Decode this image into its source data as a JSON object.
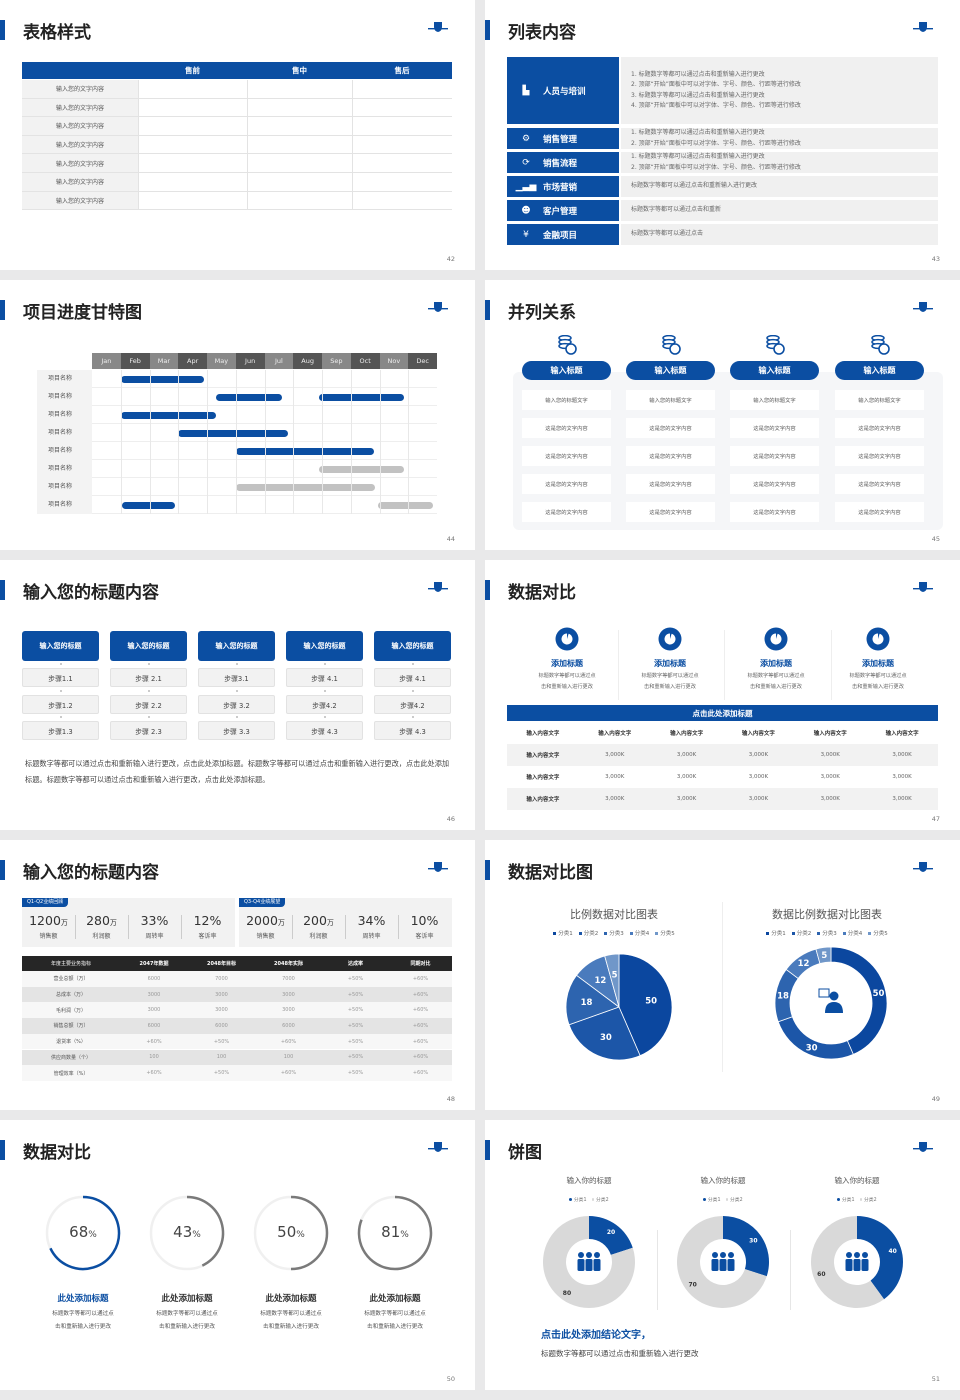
{
  "colors": {
    "primary": "#0b4ea2",
    "inactive_bar": "#c2c2c2",
    "table_header_dark": "#262626",
    "ring_gray": "#7a7a7a"
  },
  "logo": "university-crest-logo",
  "slides": [
    {
      "page": "42",
      "title": "表格样式",
      "table": {
        "headers": [
          "",
          "售前",
          "售中",
          "售后"
        ],
        "rows": [
          "输入您的文字内容",
          "输入您的文字内容",
          "输入您的文字内容",
          "输入您的文字内容",
          "输入您的文字内容",
          "输入您的文字内容",
          "输入您的文字内容"
        ]
      }
    },
    {
      "page": "43",
      "title": "列表内容",
      "items": [
        {
          "label": "人员与培训",
          "icon": "presentation-icon",
          "lines": [
            "1.  标题数字等都可以通过点击和重新输入进行更改",
            "2.  顶部“开始”面板中可以对字体、字号、颜色、行距等进行修改",
            "3.  标题数字等都可以通过点击和重新输入进行更改",
            "4.  顶部“开始”面板中可以对字体、字号、颜色、行距等进行修改"
          ]
        },
        {
          "label": "销售管理",
          "icon": "user-gear-icon",
          "lines": [
            "1.  标题数字等都可以通过点击和重新输入进行更改",
            "2.  顶部“开始”面板中可以对字体、字号、颜色、行距等进行修改"
          ]
        },
        {
          "label": "销售流程",
          "icon": "cycle-icon",
          "lines": [
            "1.  标题数字等都可以通过点击和重新输入进行更改",
            "2.  顶部“开始”面板中可以对字体、字号、颜色、行距等进行修改"
          ]
        },
        {
          "label": "市场营销",
          "icon": "bar-chart-icon",
          "lines": [
            "标题数字等都可以通过点击和重新输入进行更改"
          ]
        },
        {
          "label": "客户管理",
          "icon": "group-icon",
          "lines": [
            "标题数字等都可以通过点击和重新"
          ]
        },
        {
          "label": "金融项目",
          "icon": "money-hand-icon",
          "lines": [
            "标题数字等都可以通过点击"
          ]
        }
      ]
    },
    {
      "page": "44",
      "title": "项目进度甘特图",
      "months": [
        "Jan",
        "Feb",
        "Mar",
        "Apr",
        "May",
        "Jun",
        "Jul",
        "Aug",
        "Sep",
        "Oct",
        "Nov",
        "Dec"
      ],
      "tasks": [
        {
          "label": "项目名称",
          "bars": [
            {
              "start_month": 1.0,
              "end_month": 3.9,
              "status": "active"
            }
          ]
        },
        {
          "label": "项目名称",
          "bars": [
            {
              "start_month": 4.3,
              "end_month": 6.6,
              "status": "active"
            },
            {
              "start_month": 7.9,
              "end_month": 10.85,
              "status": "active"
            }
          ]
        },
        {
          "label": "项目名称",
          "bars": [
            {
              "start_month": 1.0,
              "end_month": 4.3,
              "status": "active"
            }
          ]
        },
        {
          "label": "项目名称",
          "bars": [
            {
              "start_month": 3.0,
              "end_month": 6.8,
              "status": "active"
            }
          ]
        },
        {
          "label": "项目名称",
          "bars": [
            {
              "start_month": 5.0,
              "end_month": 9.8,
              "status": "active"
            }
          ]
        },
        {
          "label": "项目名称",
          "bars": [
            {
              "start_month": 7.9,
              "end_month": 10.85,
              "status": "inactive"
            }
          ]
        },
        {
          "label": "项目名称",
          "bars": [
            {
              "start_month": 5.0,
              "end_month": 9.85,
              "status": "inactive"
            }
          ]
        },
        {
          "label": "项目名称",
          "bars": [
            {
              "start_month": 1.05,
              "end_month": 2.9,
              "status": "active"
            },
            {
              "start_month": 9.95,
              "end_month": 11.85,
              "status": "inactive"
            }
          ]
        }
      ]
    },
    {
      "page": "45",
      "title": "并列关系",
      "columns": [
        {
          "icon": "coins-icon",
          "heading": "输入标题",
          "cells": [
            "输入您的标题文字",
            "这是您的文字内容",
            "这是您的文字内容",
            "这是您的文字内容",
            "这是您的文字内容"
          ]
        },
        {
          "icon": "coins-icon",
          "heading": "输入标题",
          "cells": [
            "输入您的标题文字",
            "这是您的文字内容",
            "这是您的文字内容",
            "这是您的文字内容",
            "这是您的文字内容"
          ]
        },
        {
          "icon": "coins-icon",
          "heading": "输入标题",
          "cells": [
            "输入您的标题文字",
            "这是您的文字内容",
            "这是您的文字内容",
            "这是您的文字内容",
            "这是您的文字内容"
          ]
        },
        {
          "icon": "coins-icon",
          "heading": "输入标题",
          "cells": [
            "输入您的标题文字",
            "这是您的文字内容",
            "这是您的文字内容",
            "这是您的文字内容",
            "这是您的文字内容"
          ]
        }
      ]
    },
    {
      "page": "46",
      "title": "输入您的标题内容",
      "columns": [
        {
          "heading": "输入您的标题",
          "steps": [
            "步骤1.1",
            "步骤1.2",
            "步骤1.3"
          ]
        },
        {
          "heading": "输入您的标题",
          "steps": [
            "步骤 2.1",
            "步骤 2.2",
            "步骤 2.3"
          ]
        },
        {
          "heading": "输入您的标题",
          "steps": [
            "步骤3.1",
            "步骤 3.2",
            "步骤 3.3"
          ]
        },
        {
          "heading": "输入您的标题",
          "steps": [
            "步骤 4.1",
            "步骤4.2",
            "步骤 4.3"
          ]
        },
        {
          "heading": "输入您的标题",
          "steps": [
            "步骤 4.1",
            "步骤4.2",
            "步骤 4.3"
          ]
        }
      ],
      "paragraph": "标题数字等都可以通过点击和重新输入进行更改，点击此处添加标题。标题数字等都可以通过点击和重新输入进行更改，点击此处添加标题。标题数字等都可以通过点击和重新输入进行更改，点击此处添加标题。"
    },
    {
      "page": "47",
      "title": "数据对比",
      "features": [
        {
          "icon": "pie-chart-icon",
          "title": "添加标题",
          "desc": [
            "标题数字等都可以通过点",
            "击和重新输入进行更改"
          ]
        },
        {
          "icon": "pie-chart-icon",
          "title": "添加标题",
          "desc": [
            "标题数字等都可以通过点",
            "击和重新输入进行更改"
          ]
        },
        {
          "icon": "pie-chart-icon",
          "title": "添加标题",
          "desc": [
            "标题数字等都可以通过点",
            "击和重新输入进行更改"
          ]
        },
        {
          "icon": "pie-chart-icon",
          "title": "添加标题",
          "desc": [
            "标题数字等都可以通过点",
            "击和重新输入进行更改"
          ]
        }
      ],
      "table": {
        "title": "点击此处添加标题",
        "headers": [
          "输入内容文字",
          "输入内容文字",
          "输入内容文字",
          "输入内容文字",
          "输入内容文字",
          "输入内容文字"
        ],
        "rows": [
          [
            "输入内容文字",
            "3,000K",
            "3,000K",
            "3,000K",
            "3,000K",
            "3,000K"
          ],
          [
            "输入内容文字",
            "3,000K",
            "3,000K",
            "3,000K",
            "3,000K",
            "3,000K"
          ],
          [
            "输入内容文字",
            "3,000K",
            "3,000K",
            "3,000K",
            "3,000K",
            "3,000K"
          ]
        ]
      }
    },
    {
      "page": "48",
      "title": "输入您的标题内容",
      "kpi_groups": [
        {
          "tag": "Q1-Q2业绩回顾",
          "items": [
            {
              "value": "1200",
              "unit": "万",
              "label": "销售额"
            },
            {
              "value": "280",
              "unit": "万",
              "label": "利润额"
            },
            {
              "value": "33%",
              "unit": "",
              "label": "周转率"
            },
            {
              "value": "12%",
              "unit": "",
              "label": "客诉率"
            }
          ]
        },
        {
          "tag": "Q3-Q4业绩展望",
          "items": [
            {
              "value": "2000",
              "unit": "万",
              "label": "销售额"
            },
            {
              "value": "200",
              "unit": "万",
              "label": "利润额"
            },
            {
              "value": "34%",
              "unit": "",
              "label": "周转率"
            },
            {
              "value": "10%",
              "unit": "",
              "label": "客诉率"
            }
          ]
        }
      ],
      "table": {
        "headers": [
          "年度主要业务指标",
          "2047年数据",
          "2048年目标",
          "2048年实际",
          "达成率",
          "同期对比"
        ],
        "rows": [
          [
            "营业总额（万）",
            "6000",
            "7000",
            "7000",
            "+50%",
            "+60%"
          ],
          [
            "总成本（万）",
            "3000",
            "3000",
            "3000",
            "+50%",
            "+60%"
          ],
          [
            "毛利润（万）",
            "3000",
            "3000",
            "3000",
            "+50%",
            "+60%"
          ],
          [
            "销售总额（万）",
            "6000",
            "6000",
            "6000",
            "+50%",
            "+60%"
          ],
          [
            "退货率（%）",
            "+60%",
            "+50%",
            "+60%",
            "+50%",
            "+60%"
          ],
          [
            "供应商数量（个）",
            "100",
            "100",
            "100",
            "+50%",
            "+60%"
          ],
          [
            "管理效率（%）",
            "+60%",
            "+50%",
            "+60%",
            "+50%",
            "+60%"
          ]
        ]
      }
    },
    {
      "page": "49",
      "title": "数据对比图"
    },
    {
      "page": "50",
      "title": "数据对比",
      "rings": [
        {
          "percent": 68,
          "value": "68",
          "unit": "%",
          "title": "此处添加标题",
          "desc": [
            "标题数字等都可以通过点",
            "击和重新输入进行更改"
          ],
          "highlight": true
        },
        {
          "percent": 43,
          "value": "43",
          "unit": "%",
          "title": "此处添加标题",
          "desc": [
            "标题数字等都可以通过点",
            "击和重新输入进行更改"
          ],
          "highlight": false
        },
        {
          "percent": 50,
          "value": "50",
          "unit": "%",
          "title": "此处添加标题",
          "desc": [
            "标题数字等都可以通过点",
            "击和重新输入进行更改"
          ],
          "highlight": false
        },
        {
          "percent": 81,
          "value": "81",
          "unit": "%",
          "title": "此处添加标题",
          "desc": [
            "标题数字等都可以通过点",
            "击和重新输入进行更改"
          ],
          "highlight": false
        }
      ]
    },
    {
      "page": "51",
      "title": "饼图",
      "conclusion_title": "点击此处添加结论文字，",
      "conclusion_text": "标题数字等都可以通过点击和重新输入进行更改"
    }
  ],
  "chart_data": [
    {
      "type": "pie",
      "title": "比例数据对比图表",
      "categories": [
        "分类1",
        "分类2",
        "分类3",
        "分类4",
        "分类5"
      ],
      "values": [
        50,
        30,
        18,
        12,
        5
      ],
      "legend": "top",
      "colors": [
        "#0b479f",
        "#1c56a8",
        "#2d64af",
        "#4a7bbd",
        "#7097c9"
      ]
    },
    {
      "type": "pie",
      "variant": "donut",
      "title": "数据比例数据对比图表",
      "categories": [
        "分类1",
        "分类2",
        "分类3",
        "分类4",
        "分类5"
      ],
      "values": [
        50,
        30,
        18,
        12,
        5
      ],
      "legend": "top",
      "center_icon": "consultant-icon",
      "colors": [
        "#0b479f",
        "#1c56a8",
        "#2d64af",
        "#4a7bbd",
        "#7097c9"
      ]
    },
    {
      "type": "pie",
      "variant": "donut",
      "title": "输入你的标题",
      "categories": [
        "分类1",
        "分类2"
      ],
      "values": [
        20,
        80
      ],
      "legend": "top",
      "center_icon": "team-icon",
      "colors": [
        "#0b4ea2",
        "#d9d9d9"
      ]
    },
    {
      "type": "pie",
      "variant": "donut",
      "title": "输入你的标题",
      "categories": [
        "分类1",
        "分类2"
      ],
      "values": [
        30,
        70
      ],
      "legend": "top",
      "center_icon": "team-icon",
      "colors": [
        "#0b4ea2",
        "#d9d9d9"
      ]
    },
    {
      "type": "pie",
      "variant": "donut",
      "title": "输入你的标题",
      "categories": [
        "分类1",
        "分类2"
      ],
      "values": [
        40,
        60
      ],
      "legend": "top",
      "center_icon": "team-icon",
      "colors": [
        "#0b4ea2",
        "#d9d9d9"
      ]
    }
  ]
}
